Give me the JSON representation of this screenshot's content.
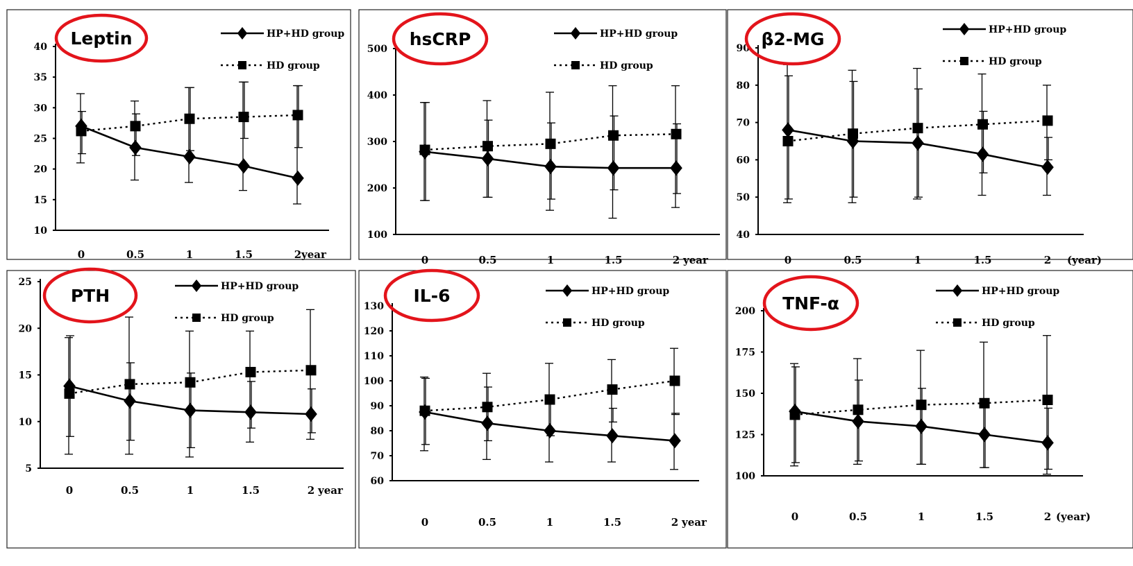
{
  "legend": {
    "hphd": "HP+HD group",
    "hd": "HD   group"
  },
  "chart_data": [
    {
      "type": "line",
      "title": "Leptin",
      "x": [
        "0",
        "0.5",
        "1",
        "1.5",
        "2"
      ],
      "xunit": "year",
      "yticks": [
        10,
        15,
        20,
        25,
        30,
        35,
        40
      ],
      "ylim": [
        10,
        40
      ],
      "series": [
        {
          "name": "HP+HD group",
          "marker": "diamond",
          "values": [
            27,
            23.5,
            22,
            20.5,
            18.5
          ],
          "err_low": [
            21,
            18.2,
            17.8,
            16.5,
            14.3
          ],
          "err_high": [
            32.3,
            31.1,
            33.3,
            34.2,
            33.6
          ]
        },
        {
          "name": "HD   group",
          "marker": "square",
          "values": [
            26.2,
            27,
            28.2,
            28.5,
            28.8
          ],
          "err_low": [
            22.5,
            22.2,
            23,
            25,
            23.5
          ],
          "err_high": [
            29.4,
            29,
            33.3,
            34.2,
            33.6
          ]
        }
      ]
    },
    {
      "type": "line",
      "title": "hsCRP",
      "x": [
        "0",
        "0.5",
        "1",
        "1.5",
        "2"
      ],
      "xunit": "year",
      "yticks": [
        100,
        200,
        300,
        400,
        500
      ],
      "ylim": [
        100,
        500
      ],
      "series": [
        {
          "name": "HP+HD group",
          "marker": "diamond",
          "values": [
            278,
            263,
            246,
            243,
            243
          ],
          "err_low": [
            173,
            180,
            152,
            135,
            158
          ],
          "err_high": [
            384,
            388,
            406,
            420,
            420
          ]
        },
        {
          "name": "HD   group",
          "marker": "square",
          "values": [
            282,
            290,
            295,
            313,
            316
          ],
          "err_low": [
            173,
            180,
            176,
            196,
            188
          ],
          "err_high": [
            384,
            346,
            340,
            355,
            338
          ]
        }
      ]
    },
    {
      "type": "line",
      "title": "β2-MG",
      "x": [
        "0",
        "0.5",
        "1",
        "1.5",
        "2"
      ],
      "xunit": "(year)",
      "yticks": [
        40,
        50,
        60,
        70,
        80,
        90
      ],
      "ylim": [
        40,
        90
      ],
      "series": [
        {
          "name": "HP+HD group",
          "marker": "diamond",
          "values": [
            68,
            65,
            64.5,
            61.5,
            58
          ],
          "err_low": [
            48.5,
            48.5,
            49.5,
            50.5,
            50.5
          ],
          "err_high": [
            85.5,
            84,
            84.5,
            83,
            80
          ]
        },
        {
          "name": "HD   group",
          "marker": "square",
          "values": [
            65,
            67,
            68.5,
            69.5,
            70.5
          ],
          "err_low": [
            49.5,
            50,
            50,
            56.5,
            60
          ],
          "err_high": [
            82.5,
            81,
            79,
            73,
            66
          ]
        }
      ]
    },
    {
      "type": "line",
      "title": "PTH",
      "x": [
        "0",
        "0.5",
        "1",
        "1.5",
        "2"
      ],
      "xunit": "year",
      "yticks": [
        5,
        10,
        15,
        20,
        25
      ],
      "ylim": [
        5,
        25
      ],
      "series": [
        {
          "name": "HP+HD group",
          "marker": "diamond",
          "values": [
            13.8,
            12.2,
            11.2,
            11,
            10.8
          ],
          "err_low": [
            6.5,
            6.5,
            6.2,
            7.8,
            8.1
          ],
          "err_high": [
            19,
            21.2,
            19.7,
            19.7,
            22
          ]
        },
        {
          "name": "HD   group",
          "marker": "square",
          "values": [
            13,
            14,
            14.2,
            15.3,
            15.5
          ],
          "err_low": [
            8.4,
            8,
            7.2,
            9.3,
            8.8
          ],
          "err_high": [
            19.2,
            16.3,
            15.2,
            14.3,
            13.5
          ]
        }
      ]
    },
    {
      "type": "line",
      "title": "IL-6",
      "x": [
        "0",
        "0.5",
        "1",
        "1.5",
        "2"
      ],
      "xunit": "year",
      "yticks": [
        60,
        70,
        80,
        90,
        100,
        110,
        120,
        130
      ],
      "ylim": [
        60,
        130
      ],
      "series": [
        {
          "name": "HP+HD group",
          "marker": "diamond",
          "values": [
            87.5,
            83,
            80,
            78,
            76
          ],
          "err_low": [
            72,
            68.5,
            67.5,
            67.5,
            64.5
          ],
          "err_high": [
            101.5,
            103,
            107,
            108.5,
            113
          ]
        },
        {
          "name": "HD   group",
          "marker": "square",
          "values": [
            88,
            89.5,
            92.5,
            96.5,
            100
          ],
          "err_low": [
            74.5,
            76,
            78,
            83.5,
            86.5
          ],
          "err_high": [
            101,
            97.5,
            93,
            89,
            87
          ]
        }
      ]
    },
    {
      "type": "line",
      "title": "TNF-α",
      "x": [
        "0",
        "0.5",
        "1",
        "1.5",
        "2"
      ],
      "xunit": "(year)",
      "yticks": [
        100,
        125,
        150,
        175,
        200
      ],
      "ylim": [
        100,
        200
      ],
      "series": [
        {
          "name": "HP+HD group",
          "marker": "diamond",
          "values": [
            139,
            133,
            130,
            125,
            120
          ],
          "err_low": [
            106,
            107,
            107,
            105,
            101
          ],
          "err_high": [
            168,
            171,
            176,
            181,
            185
          ]
        },
        {
          "name": "HD   group",
          "marker": "square",
          "values": [
            137,
            140,
            143,
            144,
            146
          ],
          "err_low": [
            108,
            109,
            107,
            105,
            104
          ],
          "err_high": [
            166,
            158,
            153,
            146,
            141
          ]
        }
      ]
    }
  ]
}
